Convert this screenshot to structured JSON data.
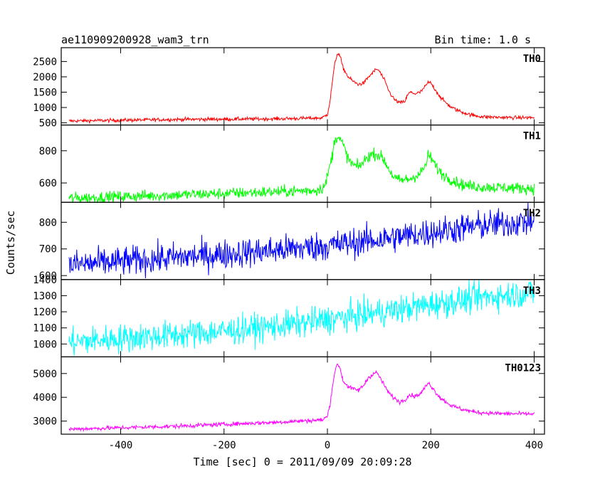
{
  "header": {
    "title": "ae110909200928_wam3_trn",
    "bin_time": "Bin time: 1.0 s"
  },
  "chart_data": {
    "type": "line",
    "title": "ae110909200928_wam3_trn",
    "subtitle": "Bin time: 1.0 s",
    "xlabel": "Time [sec] 0 = 2011/09/09 20:09:28",
    "ylabel": "Counts/sec",
    "xlim": [
      -515,
      420
    ],
    "xticks": [
      -400,
      -200,
      0,
      200,
      400
    ],
    "grid": false,
    "panels": [
      {
        "name": "TH0",
        "color": "#ff0000",
        "ylim": [
          430,
          2950
        ],
        "yticks": [
          500,
          1000,
          1500,
          2000,
          2500
        ],
        "noise": 30,
        "x": [
          -500,
          -300,
          -100,
          -10,
          0,
          5,
          10,
          15,
          20,
          25,
          30,
          40,
          50,
          60,
          70,
          80,
          90,
          95,
          100,
          110,
          120,
          130,
          140,
          150,
          155,
          160,
          170,
          180,
          190,
          195,
          200,
          210,
          220,
          240,
          260,
          280,
          300,
          330,
          360,
          400
        ],
        "values": [
          560,
          610,
          630,
          660,
          780,
          1200,
          1900,
          2500,
          2780,
          2650,
          2300,
          2000,
          1850,
          1750,
          1800,
          2000,
          2180,
          2250,
          2200,
          1900,
          1500,
          1250,
          1150,
          1200,
          1400,
          1500,
          1450,
          1500,
          1700,
          1820,
          1800,
          1550,
          1300,
          1000,
          850,
          750,
          700,
          680,
          670,
          670
        ]
      },
      {
        "name": "TH1",
        "color": "#00ff00",
        "ylim": [
          480,
          960
        ],
        "yticks": [
          600,
          800
        ],
        "noise": 18,
        "x": [
          -500,
          -400,
          -300,
          -200,
          -100,
          -20,
          -5,
          0,
          10,
          15,
          20,
          30,
          40,
          50,
          60,
          70,
          80,
          90,
          100,
          110,
          120,
          130,
          140,
          160,
          180,
          190,
          195,
          200,
          210,
          220,
          240,
          260,
          280,
          300,
          350,
          400
        ],
        "values": [
          505,
          515,
          525,
          535,
          545,
          555,
          580,
          640,
          780,
          880,
          890,
          840,
          750,
          710,
          700,
          730,
          770,
          780,
          775,
          740,
          680,
          630,
          615,
          625,
          660,
          710,
          770,
          760,
          700,
          660,
          620,
          590,
          580,
          575,
          570,
          565
        ]
      },
      {
        "name": "TH2",
        "color": "#0000ff",
        "ylim": [
          585,
          875
        ],
        "yticks": [
          600,
          700,
          800
        ],
        "noise": 28,
        "x": [
          -500,
          -400,
          -300,
          -200,
          -100,
          0,
          100,
          200,
          300,
          400
        ],
        "values": [
          640,
          652,
          667,
          680,
          695,
          712,
          735,
          762,
          788,
          805
        ]
      },
      {
        "name": "TH3",
        "color": "#00ffff",
        "ylim": [
          920,
          1400
        ],
        "yticks": [
          1000,
          1100,
          1200,
          1300,
          1400
        ],
        "noise": 45,
        "x": [
          -500,
          -400,
          -300,
          -200,
          -100,
          0,
          100,
          200,
          300,
          400
        ],
        "values": [
          1010,
          1035,
          1055,
          1080,
          1110,
          1150,
          1195,
          1245,
          1290,
          1320
        ]
      },
      {
        "name": "TH0123",
        "color": "#ff00ff",
        "ylim": [
          2450,
          5700
        ],
        "yticks": [
          3000,
          4000,
          5000
        ],
        "noise": 45,
        "x": [
          -500,
          -300,
          -100,
          -10,
          0,
          5,
          10,
          15,
          20,
          25,
          30,
          40,
          50,
          60,
          70,
          80,
          90,
          95,
          100,
          110,
          120,
          130,
          140,
          150,
          155,
          160,
          170,
          180,
          190,
          195,
          200,
          210,
          220,
          240,
          260,
          280,
          300,
          330,
          360,
          400
        ],
        "values": [
          2660,
          2780,
          2950,
          3050,
          3200,
          3700,
          4500,
          5150,
          5400,
          5200,
          4700,
          4450,
          4350,
          4300,
          4500,
          4850,
          5000,
          5050,
          4900,
          4500,
          4150,
          3950,
          3800,
          3900,
          4050,
          4100,
          4050,
          4150,
          4450,
          4600,
          4500,
          4200,
          3950,
          3650,
          3500,
          3400,
          3350,
          3320,
          3310,
          3300
        ]
      }
    ]
  }
}
